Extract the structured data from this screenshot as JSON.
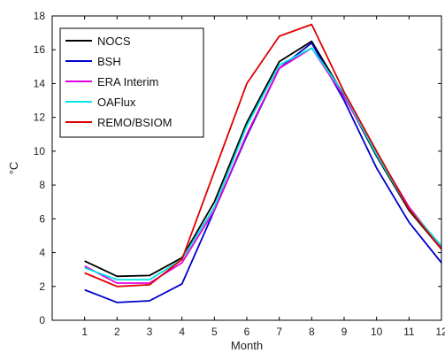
{
  "chart_data": {
    "type": "line",
    "title": "",
    "xlabel": "Month",
    "ylabel": "°C",
    "xlim": [
      0,
      12
    ],
    "ylim": [
      0,
      18
    ],
    "grid": false,
    "legend_position": "top-left",
    "x": [
      1,
      2,
      3,
      4,
      5,
      6,
      7,
      8,
      9,
      10,
      11,
      12
    ],
    "x_ticks": [
      "1",
      "2",
      "3",
      "4",
      "5",
      "6",
      "7",
      "8",
      "9",
      "10",
      "11",
      "12"
    ],
    "y_ticks": [
      "0",
      "2",
      "4",
      "6",
      "8",
      "10",
      "12",
      "14",
      "16",
      "18"
    ],
    "series": [
      {
        "name": "NOCS",
        "color": "#000000",
        "values": [
          3.5,
          2.6,
          2.65,
          3.7,
          7.0,
          11.7,
          15.3,
          16.5,
          13.3,
          9.7,
          6.5,
          4.2
        ]
      },
      {
        "name": "BSH",
        "color": "#0000cc",
        "values": [
          1.8,
          1.05,
          1.15,
          2.15,
          6.5,
          10.9,
          14.9,
          16.4,
          13.0,
          9.0,
          5.8,
          3.4
        ]
      },
      {
        "name": "ERA Interim",
        "color": "#e000e0",
        "values": [
          3.2,
          2.2,
          2.2,
          3.4,
          6.5,
          11.0,
          14.9,
          16.1,
          13.2,
          9.9,
          6.7,
          4.3
        ]
      },
      {
        "name": "OAFlux",
        "color": "#00e5e5",
        "values": [
          3.1,
          2.4,
          2.4,
          3.6,
          6.7,
          11.5,
          15.1,
          16.1,
          13.4,
          9.8,
          6.6,
          4.4
        ]
      },
      {
        "name": "REMO/BSIOM",
        "color": "#e00000",
        "values": [
          2.8,
          2.0,
          2.1,
          3.6,
          8.8,
          14.0,
          16.8,
          17.5,
          13.5,
          10.0,
          6.6,
          4.2
        ]
      }
    ]
  }
}
